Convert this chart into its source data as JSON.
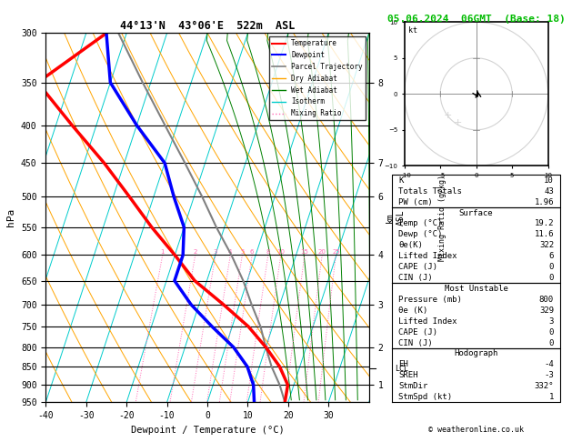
{
  "title_left": "44°13'N  43°06'E  522m  ASL",
  "title_right": "05.06.2024  06GMT  (Base: 18)",
  "xlabel": "Dewpoint / Temperature (°C)",
  "ylabel_left": "hPa",
  "pressure_levels": [
    300,
    350,
    400,
    450,
    500,
    550,
    600,
    650,
    700,
    750,
    800,
    850,
    900,
    950
  ],
  "pressure_ticks": [
    300,
    350,
    400,
    450,
    500,
    550,
    600,
    650,
    700,
    750,
    800,
    850,
    900,
    950
  ],
  "xlim": [
    -40,
    40
  ],
  "xticks": [
    -40,
    -30,
    -20,
    -10,
    0,
    10,
    20,
    30
  ],
  "temp_profile": {
    "temps": [
      19.2,
      18.5,
      15.0,
      10.0,
      4.0,
      -4.0,
      -13.0,
      -20.0,
      -28.0,
      -36.0,
      -45.0,
      -56.0,
      -68.0,
      -55.0
    ],
    "pressures": [
      950,
      900,
      850,
      800,
      750,
      700,
      650,
      600,
      550,
      500,
      450,
      400,
      350,
      300
    ]
  },
  "dewp_profile": {
    "dewps": [
      11.6,
      10.0,
      7.0,
      2.0,
      -5.0,
      -12.0,
      -18.0,
      -18.0,
      -20.0,
      -25.0,
      -30.0,
      -40.0,
      -50.0,
      -55.0
    ],
    "pressures": [
      950,
      900,
      850,
      800,
      750,
      700,
      650,
      600,
      550,
      500,
      450,
      400,
      350,
      300
    ]
  },
  "parcel_trajectory": {
    "temps": [
      19.2,
      16.5,
      13.0,
      10.0,
      7.0,
      3.0,
      -1.0,
      -6.0,
      -12.0,
      -18.0,
      -25.0,
      -33.0,
      -42.0,
      -52.0
    ],
    "pressures": [
      950,
      900,
      850,
      800,
      750,
      700,
      650,
      600,
      550,
      500,
      450,
      400,
      350,
      300
    ]
  },
  "km_ticks_p": [
    900,
    800,
    700,
    600,
    500,
    450,
    350
  ],
  "km_ticks_lab": [
    "1",
    "2",
    "3",
    "4",
    "6",
    "7",
    "8"
  ],
  "lcl_pressure": 855,
  "mixing_ratio_lines": [
    1,
    2,
    3,
    4,
    5,
    6,
    8,
    10,
    15,
    20,
    25
  ],
  "dry_adiabat_color": "#FFA500",
  "wet_adiabat_color": "#008000",
  "isotherm_color": "#00CCCC",
  "mixing_ratio_color": "#FF69B4",
  "temp_color": "#FF0000",
  "dewp_color": "#0000FF",
  "parcel_color": "#808080",
  "hodograph": {
    "K": 10,
    "TT": 43,
    "PW": 1.96,
    "surface_temp": 19.2,
    "surface_dewp": 11.6,
    "theta_e_surface": 322,
    "lifted_index_surface": 6,
    "CAPE_surface": 0,
    "CIN_surface": 0,
    "mu_pressure": 800,
    "theta_e_mu": 329,
    "lifted_index_mu": 3,
    "CAPE_mu": 0,
    "CIN_mu": 0,
    "EH": -4,
    "SREH": -3,
    "StmDir": 332,
    "StmSpd": 1
  }
}
